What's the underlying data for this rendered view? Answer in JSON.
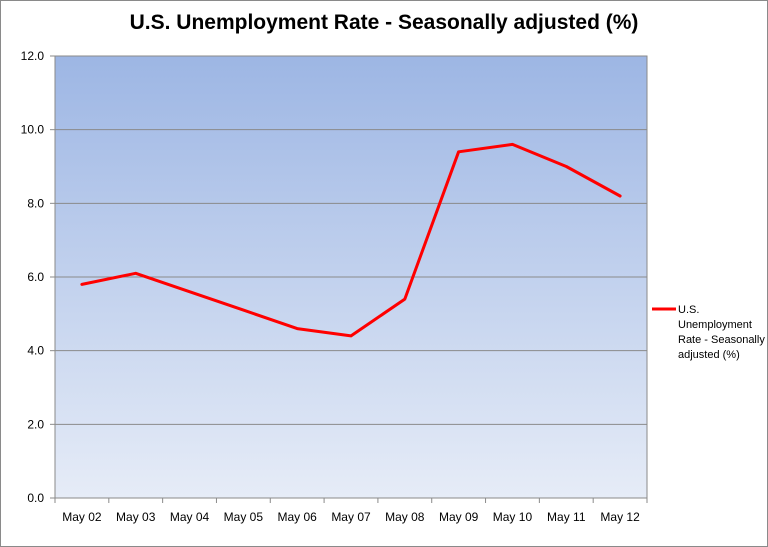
{
  "chart_data": {
    "type": "line",
    "title": "U.S. Unemployment Rate - Seasonally adjusted (%)",
    "xlabel": "",
    "ylabel": "",
    "categories": [
      "May 02",
      "May 03",
      "May 04",
      "May 05",
      "May 06",
      "May 07",
      "May 08",
      "May 09",
      "May 10",
      "May 11",
      "May 12"
    ],
    "series": [
      {
        "name": "U.S. Unemployment Rate - Seasonally adjusted (%)",
        "values": [
          5.8,
          6.1,
          5.6,
          5.1,
          4.6,
          4.4,
          5.4,
          9.4,
          9.6,
          9.0,
          8.2
        ],
        "color": "#ff0000"
      }
    ],
    "ylim": [
      0,
      12
    ],
    "yticks": [
      "0.0",
      "2.0",
      "4.0",
      "6.0",
      "8.0",
      "10.0",
      "12.0"
    ],
    "grid": true,
    "legend_position": "right",
    "legend_lines": [
      "U.S.",
      "Unemployment",
      "Rate - Seasonally",
      "adjusted (%)"
    ],
    "plot_background": {
      "top": "#9db6e4",
      "bottom": "#e6ecf7"
    }
  }
}
